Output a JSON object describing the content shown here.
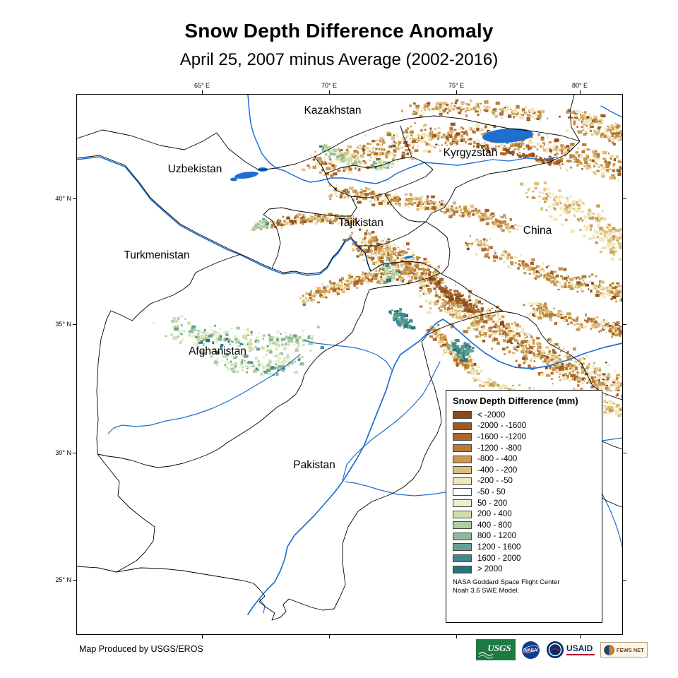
{
  "header": {
    "title": "Snow Depth Difference Anomaly",
    "subtitle": "April 25, 2007 minus Average (2002-2016)"
  },
  "map": {
    "x_ticks": [
      "65° E",
      "70° E",
      "75° E",
      "80° E"
    ],
    "y_ticks": [
      "40° N",
      "35° N",
      "30° N",
      "25° N"
    ],
    "countries": [
      "Kazakhstan",
      "Uzbekistan",
      "Kyrgyzstan",
      "Turkmenistan",
      "Tajikistan",
      "China",
      "Afghanistan",
      "Pakistan"
    ],
    "colors": {
      "river_blue": "#1e6fd0",
      "border_black": "#000000",
      "land_white": "#ffffff"
    }
  },
  "legend": {
    "title": "Snow Depth Difference (mm)",
    "entries": [
      {
        "label": "< -2000",
        "color": "#8a4a1d"
      },
      {
        "label": "-2000 - -1600",
        "color": "#9d5a22"
      },
      {
        "label": "-1600 - -1200",
        "color": "#aa6827"
      },
      {
        "label": "-1200 - -800",
        "color": "#b97d35"
      },
      {
        "label": "-800 - -400",
        "color": "#c99851"
      },
      {
        "label": "-400 - -200",
        "color": "#dcbf7e"
      },
      {
        "label": "-200 - -50",
        "color": "#f0e8bd"
      },
      {
        "label": "-50 - 50",
        "color": "#ffffff"
      },
      {
        "label": "50 - 200",
        "color": "#e9efcf"
      },
      {
        "label": "200 - 400",
        "color": "#cfe0aa"
      },
      {
        "label": "400 - 800",
        "color": "#aecda2"
      },
      {
        "label": "800 - 1200",
        "color": "#8bba9c"
      },
      {
        "label": "1200 - 1600",
        "color": "#64a296"
      },
      {
        "label": "1600 - 2000",
        "color": "#3f8a8d"
      },
      {
        "label": "> 2000",
        "color": "#29737f"
      }
    ],
    "note1": "NASA Goddard Space Flight Center",
    "note2": "Noah 3.6 SWE Model."
  },
  "footer": {
    "credit": "Map Produced by USGS/EROS"
  },
  "logos": {
    "usgs": "USGS",
    "nasa": "NASA",
    "usaid": "USAID",
    "fewsnet": "FEWS NET"
  }
}
